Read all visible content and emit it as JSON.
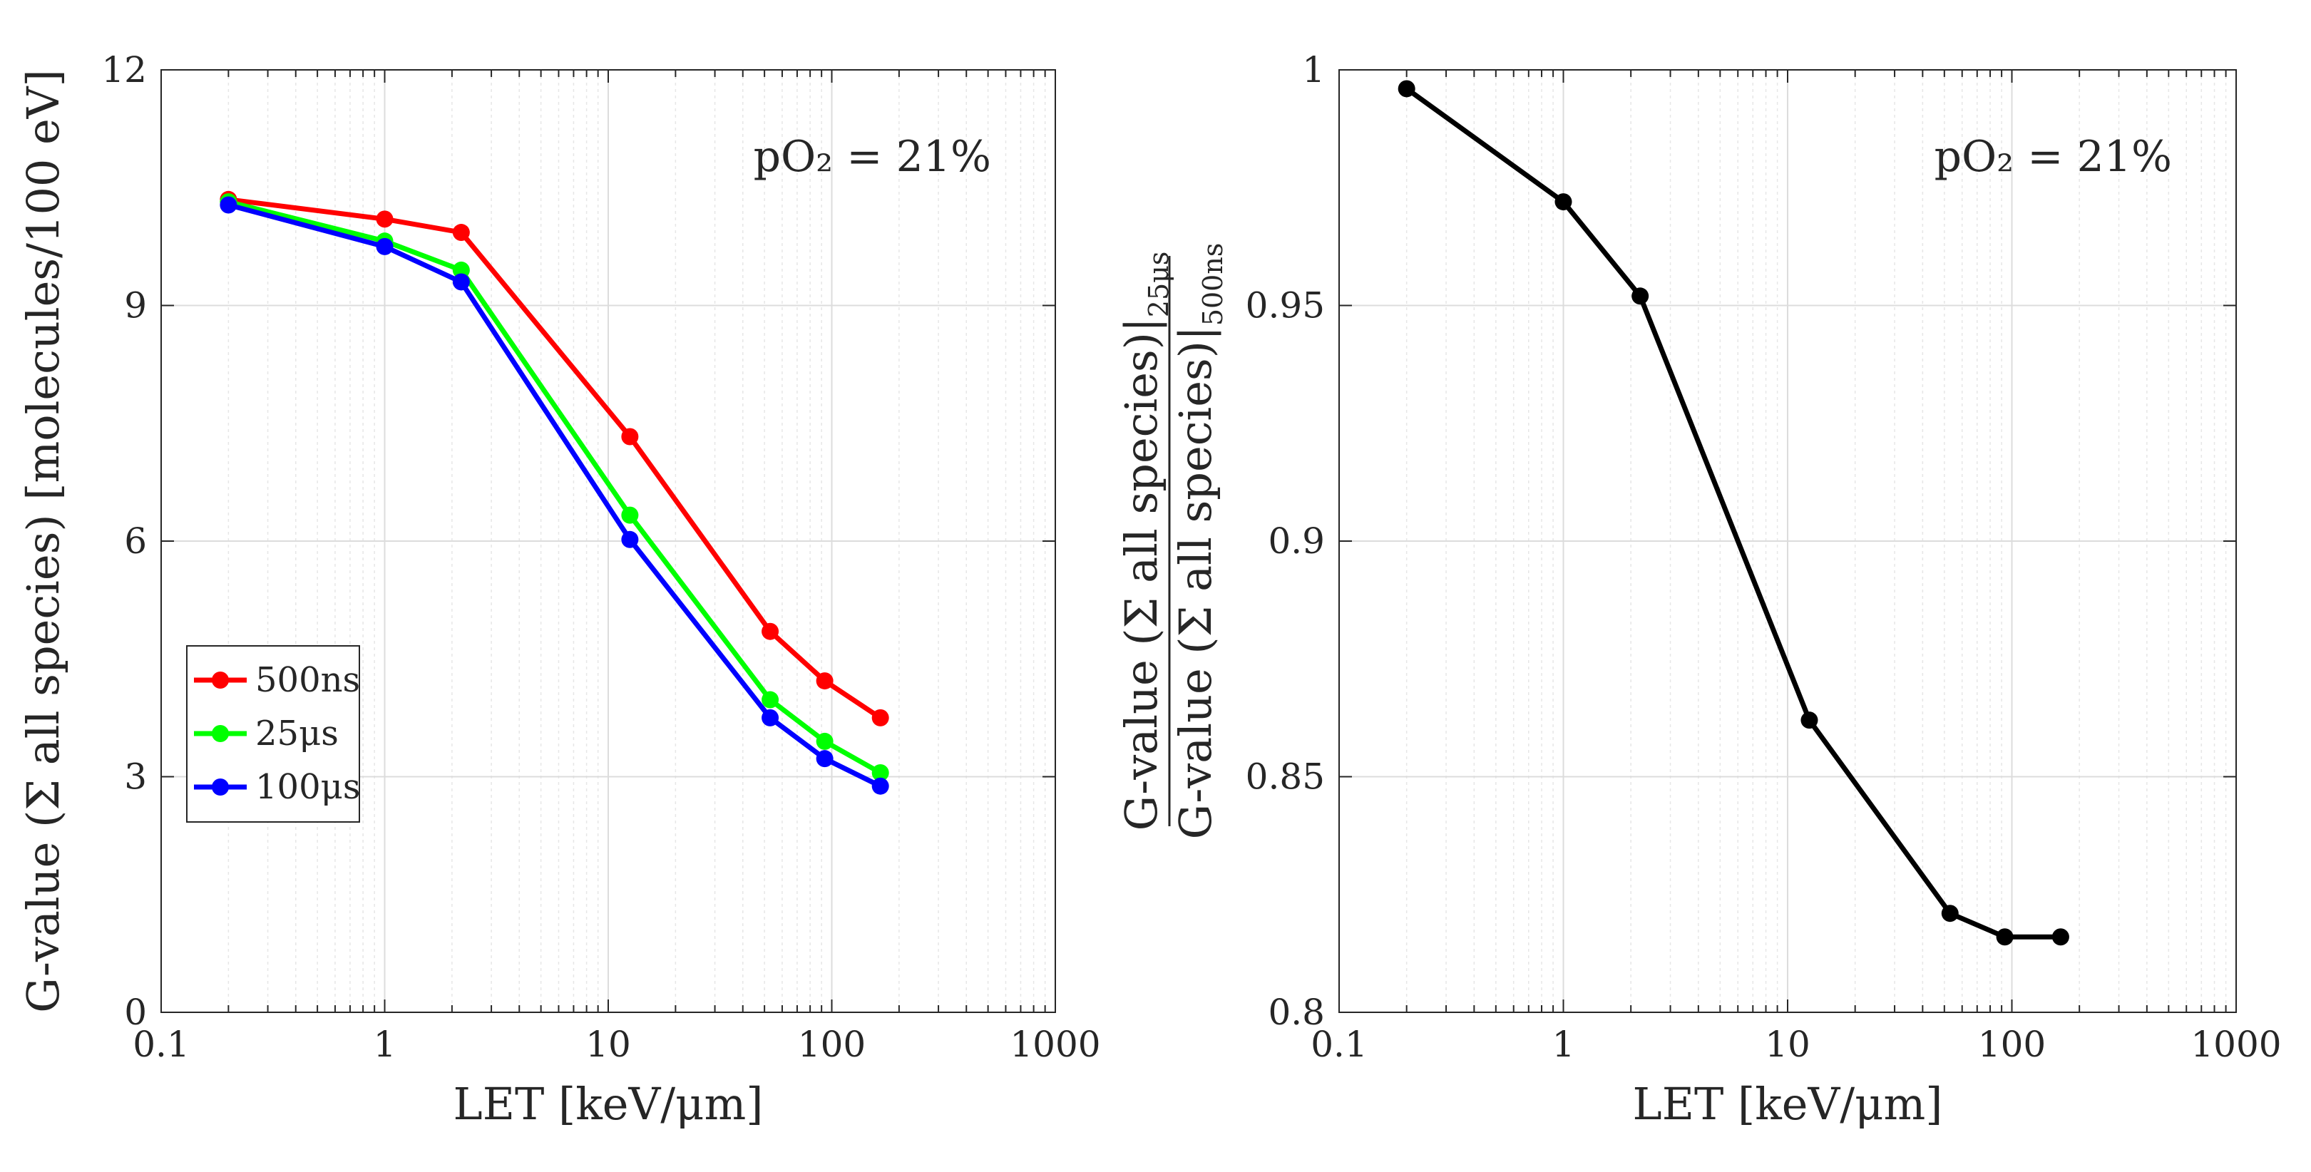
{
  "chart_data": [
    {
      "type": "line",
      "xscale": "log",
      "xlim": [
        0.1,
        1000
      ],
      "ylim": [
        0,
        12
      ],
      "xticks": [
        "0.1",
        "1",
        "10",
        "100",
        "1000"
      ],
      "yticks": [
        "0",
        "3",
        "6",
        "9",
        "12"
      ],
      "xlabel": "LET [keV/μm]",
      "ylabel": "G-value (Σ all species) [molecules/100 eV]",
      "annotation": "pO₂ = 21%",
      "grid": true,
      "legend_position": "lower-left",
      "x": [
        0.2,
        1.0,
        2.2,
        12.5,
        53,
        93,
        165
      ],
      "series": [
        {
          "name": "500ns",
          "color": "#ff0000",
          "values": [
            10.35,
            10.1,
            9.93,
            7.33,
            4.85,
            4.22,
            3.75
          ]
        },
        {
          "name": "25μs",
          "color": "#00ff00",
          "values": [
            10.32,
            9.82,
            9.45,
            6.33,
            3.98,
            3.45,
            3.05
          ]
        },
        {
          "name": "100μs",
          "color": "#0000ff",
          "values": [
            10.28,
            9.75,
            9.3,
            6.02,
            3.75,
            3.23,
            2.88
          ]
        }
      ]
    },
    {
      "type": "line",
      "xscale": "log",
      "xlim": [
        0.1,
        1000
      ],
      "ylim": [
        0.8,
        1
      ],
      "xticks": [
        "0.1",
        "1",
        "10",
        "100",
        "1000"
      ],
      "yticks": [
        "0.8",
        "0.85",
        "0.9",
        "0.95",
        "1"
      ],
      "xlabel": "LET [keV/μm]",
      "ylabel_numerator": "G-value (Σ all species)|",
      "ylabel_numerator_sub": "25μs",
      "ylabel_denominator": "G-value (Σ all species)|",
      "ylabel_denominator_sub": "500ns",
      "annotation": "pO₂ = 21%",
      "grid": true,
      "x": [
        0.2,
        1.0,
        2.2,
        12.5,
        53,
        93,
        165
      ],
      "series": [
        {
          "color": "#000000",
          "values": [
            0.996,
            0.972,
            0.952,
            0.862,
            0.821,
            0.816,
            0.816
          ]
        }
      ]
    }
  ]
}
